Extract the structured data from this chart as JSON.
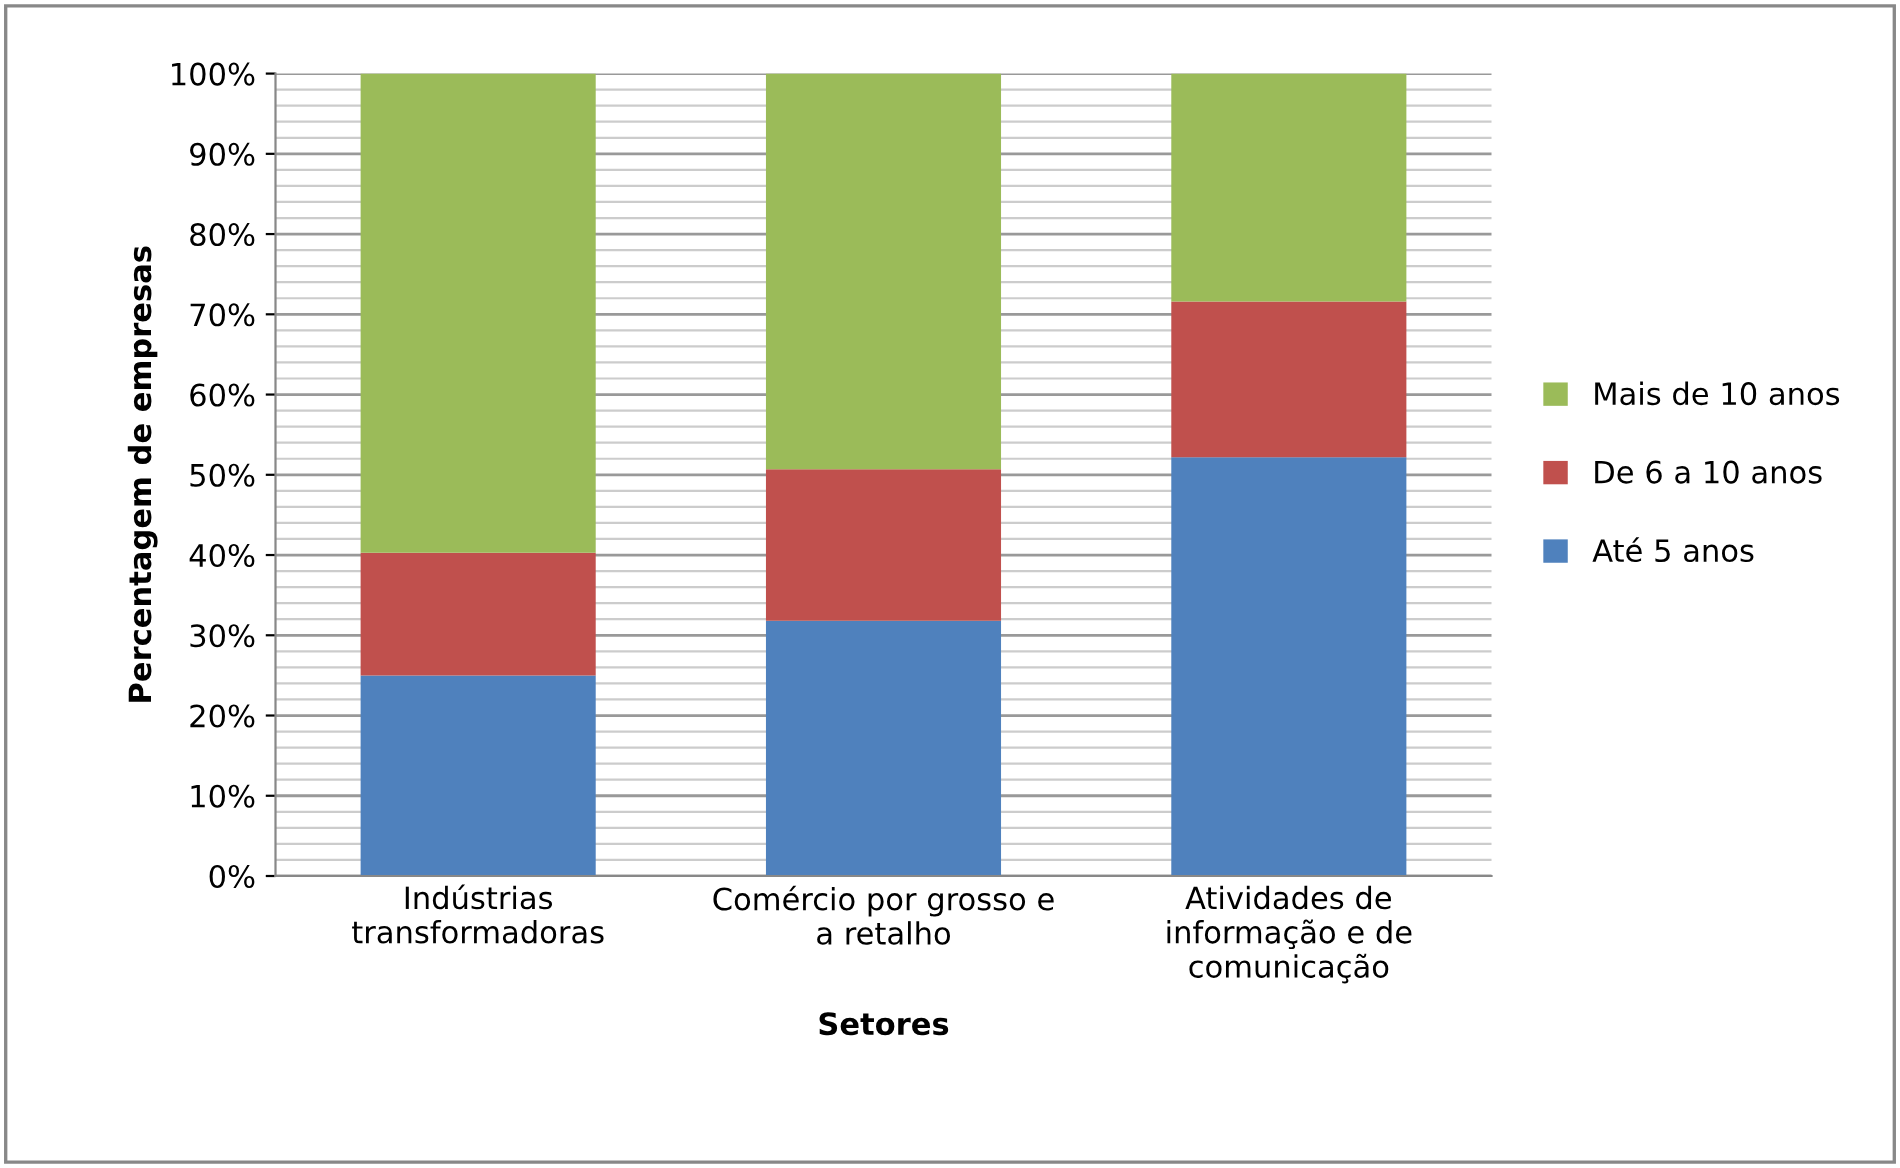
{
  "chart_data": {
    "type": "bar",
    "stacked": true,
    "xlabel": "Setores",
    "ylabel": "Percentagem de empresas",
    "categories": [
      "Indústrias\ntransformadoras",
      "Comércio por grosso e\na retalho",
      "Atividades de\ninformação e de\ncomunicação"
    ],
    "series": [
      {
        "name": "Até 5 anos",
        "color": "#4f81bd",
        "values": [
          25.0,
          31.8,
          52.2
        ]
      },
      {
        "name": "De 6 a 10 anos",
        "color": "#c0504d",
        "values": [
          15.3,
          18.9,
          19.4
        ]
      },
      {
        "name": "Mais de 10 anos",
        "color": "#9bbb59",
        "values": [
          59.7,
          49.3,
          28.4
        ]
      }
    ],
    "ylim": [
      0,
      100
    ],
    "yticks": [
      {
        "value": 0,
        "label": "0%"
      },
      {
        "value": 10,
        "label": "10%"
      },
      {
        "value": 20,
        "label": "20%"
      },
      {
        "value": 30,
        "label": "30%"
      },
      {
        "value": 40,
        "label": "40%"
      },
      {
        "value": 50,
        "label": "50%"
      },
      {
        "value": 60,
        "label": "60%"
      },
      {
        "value": 70,
        "label": "70%"
      },
      {
        "value": 80,
        "label": "80%"
      },
      {
        "value": 90,
        "label": "90%"
      },
      {
        "value": 100,
        "label": "100%"
      }
    ],
    "grid": "y",
    "legend": "right"
  }
}
